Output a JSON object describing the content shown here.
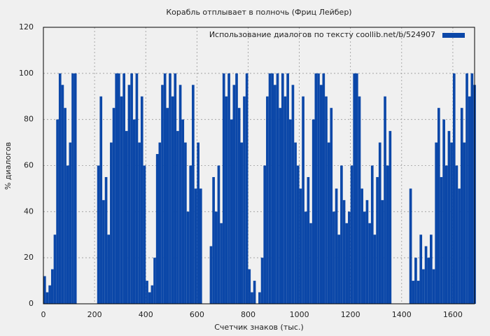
{
  "chart_data": {
    "type": "bar",
    "title": "Корабль отплывает в полночь (Фриц Лейбер)",
    "xlabel": "Счетчик знаков (тыс.)",
    "ylabel": "% диалогов",
    "series": [
      {
        "name": "Использование диалогов по тексту  coollib.net/b/524907",
        "color": "#0b47a8",
        "x": [
          0,
          10,
          20,
          30,
          40,
          50,
          60,
          70,
          80,
          90,
          100,
          110,
          120,
          130,
          140,
          150,
          160,
          170,
          180,
          190,
          200,
          210,
          220,
          230,
          240,
          250,
          260,
          270,
          280,
          290,
          300,
          310,
          320,
          330,
          340,
          350,
          360,
          370,
          380,
          390,
          400,
          410,
          420,
          430,
          440,
          450,
          460,
          470,
          480,
          490,
          500,
          510,
          520,
          530,
          540,
          550,
          560,
          570,
          580,
          590,
          600,
          610,
          620,
          630,
          640,
          650,
          660,
          670,
          680,
          690,
          700,
          710,
          720,
          730,
          740,
          750,
          760,
          770,
          780,
          790,
          800,
          810,
          820,
          830,
          840,
          850,
          860,
          870,
          880,
          890,
          900,
          910,
          920,
          930,
          940,
          950,
          960,
          970,
          980,
          990,
          1000,
          1010,
          1020,
          1030,
          1040,
          1050,
          1060,
          1070,
          1080,
          1090,
          1100,
          1110,
          1120,
          1130,
          1140,
          1150,
          1160,
          1170,
          1180,
          1190,
          1200,
          1210,
          1220,
          1230,
          1240,
          1250,
          1260,
          1270,
          1280,
          1290,
          1300,
          1310,
          1320,
          1330,
          1340,
          1350,
          1360,
          1370,
          1380,
          1390,
          1400,
          1410,
          1420,
          1430,
          1440,
          1450,
          1460,
          1470,
          1480,
          1490,
          1500,
          1510,
          1520,
          1530,
          1540,
          1550,
          1560,
          1570,
          1580,
          1590,
          1600,
          1610,
          1620,
          1630,
          1640,
          1650,
          1660,
          1670,
          1680
        ],
        "values": [
          12,
          5,
          8,
          15,
          30,
          80,
          100,
          95,
          85,
          60,
          70,
          100,
          100,
          0,
          0,
          0,
          0,
          0,
          0,
          0,
          0,
          60,
          90,
          45,
          55,
          30,
          70,
          85,
          100,
          100,
          90,
          100,
          75,
          95,
          100,
          80,
          100,
          70,
          90,
          60,
          10,
          5,
          8,
          20,
          65,
          70,
          95,
          100,
          85,
          100,
          90,
          100,
          75,
          95,
          80,
          70,
          40,
          60,
          95,
          50,
          70,
          50,
          0,
          0,
          0,
          25,
          55,
          40,
          60,
          35,
          100,
          90,
          100,
          80,
          95,
          100,
          85,
          70,
          90,
          100,
          15,
          5,
          10,
          0,
          5,
          20,
          60,
          90,
          100,
          100,
          95,
          100,
          85,
          100,
          90,
          100,
          80,
          95,
          70,
          60,
          50,
          90,
          40,
          55,
          35,
          80,
          100,
          100,
          95,
          100,
          90,
          70,
          85,
          40,
          50,
          30,
          60,
          45,
          35,
          40,
          60,
          100,
          100,
          90,
          50,
          40,
          45,
          35,
          60,
          30,
          55,
          70,
          45,
          90,
          60,
          75,
          0,
          0,
          0,
          0,
          0,
          0,
          0,
          50,
          10,
          20,
          10,
          30,
          15,
          25,
          20,
          30,
          15,
          70,
          85,
          55,
          80,
          60,
          75,
          70,
          100,
          60,
          50,
          85,
          70,
          100,
          90,
          100,
          95
        ]
      }
    ],
    "xlim": [
      0,
      1685
    ],
    "ylim": [
      0,
      120
    ],
    "xticks": [
      0,
      200,
      400,
      600,
      800,
      1000,
      1200,
      1400,
      1600
    ],
    "yticks": [
      0,
      20,
      40,
      60,
      80,
      100,
      120
    ],
    "grid": true,
    "legend": "upper right"
  }
}
